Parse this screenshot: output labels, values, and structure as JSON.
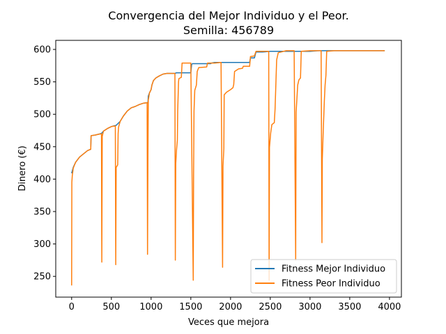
{
  "chart_data": {
    "type": "line",
    "title": "Convergencia del Mejor Individuo y el Peor.",
    "subtitle": "Semilla: 456789",
    "xlabel": "Veces que mejora",
    "ylabel": "Dinero (€)",
    "xlim": [
      -200,
      4150
    ],
    "ylim": [
      218,
      614
    ],
    "xticks": [
      0,
      500,
      1000,
      1500,
      2000,
      2500,
      3000,
      3500,
      4000
    ],
    "yticks": [
      250,
      300,
      350,
      400,
      450,
      500,
      550,
      600
    ],
    "grid": false,
    "legend_position": "lower-right",
    "series": [
      {
        "name": "Fitness Mejor Individuo",
        "color": "#1f77b4",
        "points": [
          [
            0,
            409
          ],
          [
            20,
            418
          ],
          [
            50,
            426
          ],
          [
            100,
            434
          ],
          [
            150,
            439
          ],
          [
            200,
            444
          ],
          [
            240,
            446
          ],
          [
            245,
            467
          ],
          [
            300,
            468
          ],
          [
            330,
            469
          ],
          [
            360,
            470
          ],
          [
            380,
            471
          ],
          [
            400,
            474
          ],
          [
            450,
            478
          ],
          [
            500,
            481
          ],
          [
            530,
            482
          ],
          [
            560,
            483
          ],
          [
            610,
            489
          ],
          [
            650,
            497
          ],
          [
            700,
            505
          ],
          [
            750,
            510
          ],
          [
            800,
            512
          ],
          [
            850,
            515
          ],
          [
            900,
            517
          ],
          [
            960,
            518
          ],
          [
            965,
            528
          ],
          [
            980,
            533
          ],
          [
            1000,
            538
          ],
          [
            1010,
            545
          ],
          [
            1030,
            552
          ],
          [
            1060,
            556
          ],
          [
            1100,
            559
          ],
          [
            1150,
            562
          ],
          [
            1200,
            563
          ],
          [
            1300,
            563
          ],
          [
            1320,
            564
          ],
          [
            1400,
            564
          ],
          [
            1500,
            564
          ],
          [
            1510,
            577
          ],
          [
            1520,
            578
          ],
          [
            1700,
            578
          ],
          [
            1750,
            578
          ],
          [
            1760,
            579
          ],
          [
            1800,
            580
          ],
          [
            1900,
            580
          ],
          [
            2000,
            580
          ],
          [
            2240,
            580
          ],
          [
            2250,
            587
          ],
          [
            2300,
            587
          ],
          [
            2320,
            596
          ],
          [
            2400,
            596
          ],
          [
            2500,
            597
          ],
          [
            3000,
            597
          ],
          [
            3100,
            598
          ],
          [
            3940,
            598
          ]
        ]
      },
      {
        "name": "Fitness Peor Individuo",
        "color": "#ff7f0e",
        "points": [
          [
            0,
            236
          ],
          [
            3,
            395
          ],
          [
            8,
            405
          ],
          [
            20,
            417
          ],
          [
            50,
            426
          ],
          [
            100,
            434
          ],
          [
            150,
            439
          ],
          [
            200,
            444
          ],
          [
            240,
            446
          ],
          [
            245,
            467
          ],
          [
            300,
            468
          ],
          [
            330,
            469
          ],
          [
            375,
            470
          ],
          [
            380,
            272
          ],
          [
            385,
            466
          ],
          [
            400,
            474
          ],
          [
            450,
            478
          ],
          [
            500,
            481
          ],
          [
            550,
            482
          ],
          [
            555,
            268
          ],
          [
            560,
            418
          ],
          [
            580,
            422
          ],
          [
            585,
            470
          ],
          [
            590,
            480
          ],
          [
            610,
            489
          ],
          [
            650,
            497
          ],
          [
            700,
            505
          ],
          [
            750,
            510
          ],
          [
            800,
            512
          ],
          [
            850,
            515
          ],
          [
            900,
            517
          ],
          [
            950,
            518
          ],
          [
            955,
            284
          ],
          [
            960,
            439
          ],
          [
            965,
            522
          ],
          [
            980,
            533
          ],
          [
            1000,
            538
          ],
          [
            1010,
            545
          ],
          [
            1030,
            552
          ],
          [
            1060,
            556
          ],
          [
            1100,
            559
          ],
          [
            1150,
            562
          ],
          [
            1200,
            563
          ],
          [
            1300,
            563
          ],
          [
            1305,
            275
          ],
          [
            1310,
            424
          ],
          [
            1320,
            445
          ],
          [
            1330,
            460
          ],
          [
            1335,
            505
          ],
          [
            1345,
            550
          ],
          [
            1350,
            555
          ],
          [
            1380,
            557
          ],
          [
            1390,
            579
          ],
          [
            1500,
            579
          ],
          [
            1530,
            244
          ],
          [
            1535,
            407
          ],
          [
            1540,
            505
          ],
          [
            1550,
            537
          ],
          [
            1570,
            545
          ],
          [
            1580,
            566
          ],
          [
            1600,
            572
          ],
          [
            1700,
            573
          ],
          [
            1710,
            579
          ],
          [
            1800,
            579
          ],
          [
            1880,
            580
          ],
          [
            1900,
            264
          ],
          [
            1905,
            420
          ],
          [
            1915,
            447
          ],
          [
            1920,
            530
          ],
          [
            1950,
            534
          ],
          [
            2000,
            538
          ],
          [
            2030,
            541
          ],
          [
            2040,
            546
          ],
          [
            2050,
            566
          ],
          [
            2100,
            570
          ],
          [
            2150,
            571
          ],
          [
            2160,
            574
          ],
          [
            2240,
            574
          ],
          [
            2250,
            589
          ],
          [
            2300,
            590
          ],
          [
            2320,
            597
          ],
          [
            2480,
            597
          ],
          [
            2485,
            244
          ],
          [
            2490,
            449
          ],
          [
            2505,
            471
          ],
          [
            2520,
            484
          ],
          [
            2550,
            487
          ],
          [
            2560,
            508
          ],
          [
            2580,
            584
          ],
          [
            2600,
            595
          ],
          [
            2700,
            598
          ],
          [
            2800,
            598
          ],
          [
            2820,
            275
          ],
          [
            2825,
            503
          ],
          [
            2835,
            525
          ],
          [
            2845,
            545
          ],
          [
            2860,
            553
          ],
          [
            2880,
            556
          ],
          [
            2890,
            597
          ],
          [
            3000,
            598
          ],
          [
            3140,
            598
          ],
          [
            3150,
            302
          ],
          [
            3155,
            431
          ],
          [
            3165,
            470
          ],
          [
            3180,
            520
          ],
          [
            3190,
            545
          ],
          [
            3200,
            560
          ],
          [
            3210,
            597
          ],
          [
            3300,
            598
          ],
          [
            3940,
            598
          ]
        ]
      }
    ]
  }
}
